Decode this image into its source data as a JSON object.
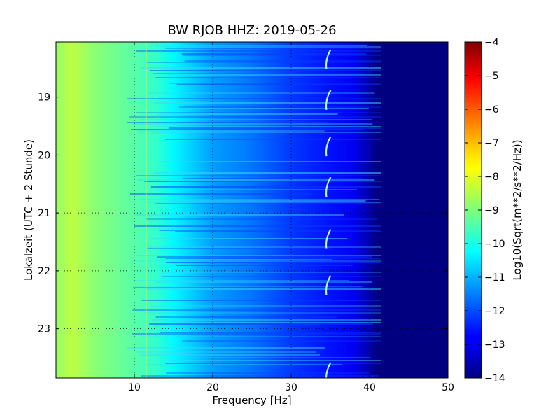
{
  "chart_data": {
    "type": "heatmap",
    "title": "BW RJOB HHZ: 2019-05-26",
    "xlabel": "Frequency [Hz]",
    "ylabel": "Lokalzeit (UTC + 2 Stunde)",
    "xlim": [
      0,
      50
    ],
    "ylim": [
      18.05,
      23.85
    ],
    "y_inverted": true,
    "grid": true,
    "x_ticks": [
      10,
      20,
      30,
      40,
      50
    ],
    "y_ticks": [
      19,
      20,
      21,
      22,
      23
    ],
    "colormap": "jet",
    "colorbar": {
      "label": "Log10(Sqrt(m**2/s**2/Hz))",
      "range": [
        -14,
        -4
      ],
      "ticks": [
        -14,
        -13,
        -12,
        -11,
        -10,
        -9,
        -8,
        -7,
        -6,
        -5,
        -4
      ]
    },
    "spectral_profile": {
      "frequency_hz": [
        0,
        2,
        5,
        10,
        13,
        15,
        20,
        25,
        30,
        35,
        38,
        40,
        41,
        42,
        50
      ],
      "log10_amplitude": [
        -8.8,
        -8.4,
        -8.9,
        -9.4,
        -9.8,
        -10.3,
        -11.2,
        -11.6,
        -12.2,
        -12.6,
        -12.9,
        -13.6,
        -14,
        -14,
        -14
      ]
    },
    "narrowband_features": [
      {
        "frequency_hz": 34.5,
        "description_times": [
          18.4,
          19.1,
          19.9,
          20.6,
          21.5,
          22.3,
          23.8
        ]
      },
      {
        "frequency_hz": 11.5,
        "description_times": []
      }
    ]
  }
}
